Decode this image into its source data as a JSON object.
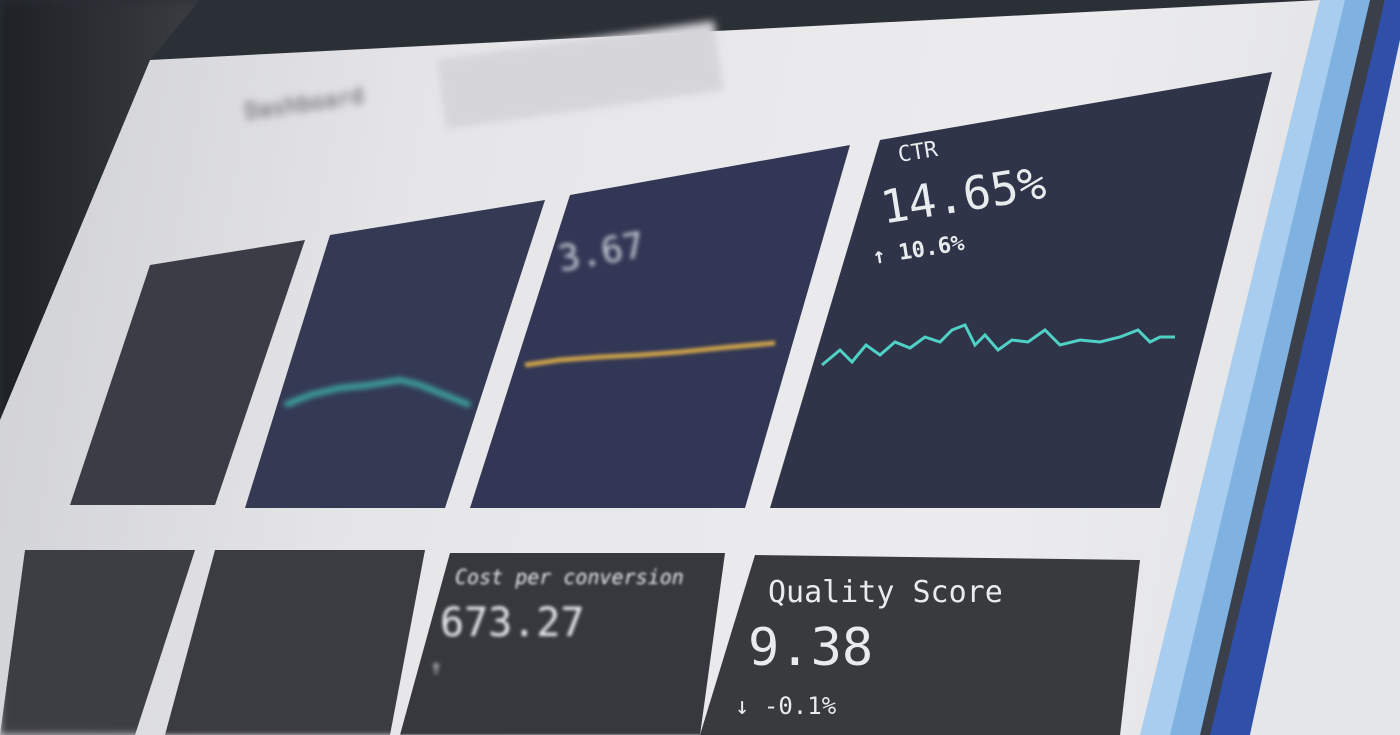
{
  "header": {
    "title": "Dashboard"
  },
  "cards": [
    {
      "label": "CTR",
      "value": "14.65%",
      "change": "10.6%",
      "trend": "up",
      "line_color": "#4fd1c5"
    },
    {
      "label": "Quality Score",
      "value": "9.38",
      "change": "-0.1%",
      "trend": "down"
    },
    {
      "label": "Cost per conversion",
      "value": "673.27",
      "change": "",
      "trend": "up"
    },
    {
      "label": "",
      "value": "3.67",
      "change": "",
      "trend": "up",
      "line_color": "#c9a04a"
    },
    {
      "label": "",
      "value": "",
      "change": "",
      "trend": "up",
      "line_color": "#3fb8b0"
    }
  ],
  "colors": {
    "panel": "#2f3448",
    "screen": "#e8e8eb",
    "accent_teal": "#4fd1c5",
    "accent_gold": "#c9a04a",
    "bezel_blue": "#2f4fa8",
    "bezel_light_blue": "#9fc6ea"
  }
}
